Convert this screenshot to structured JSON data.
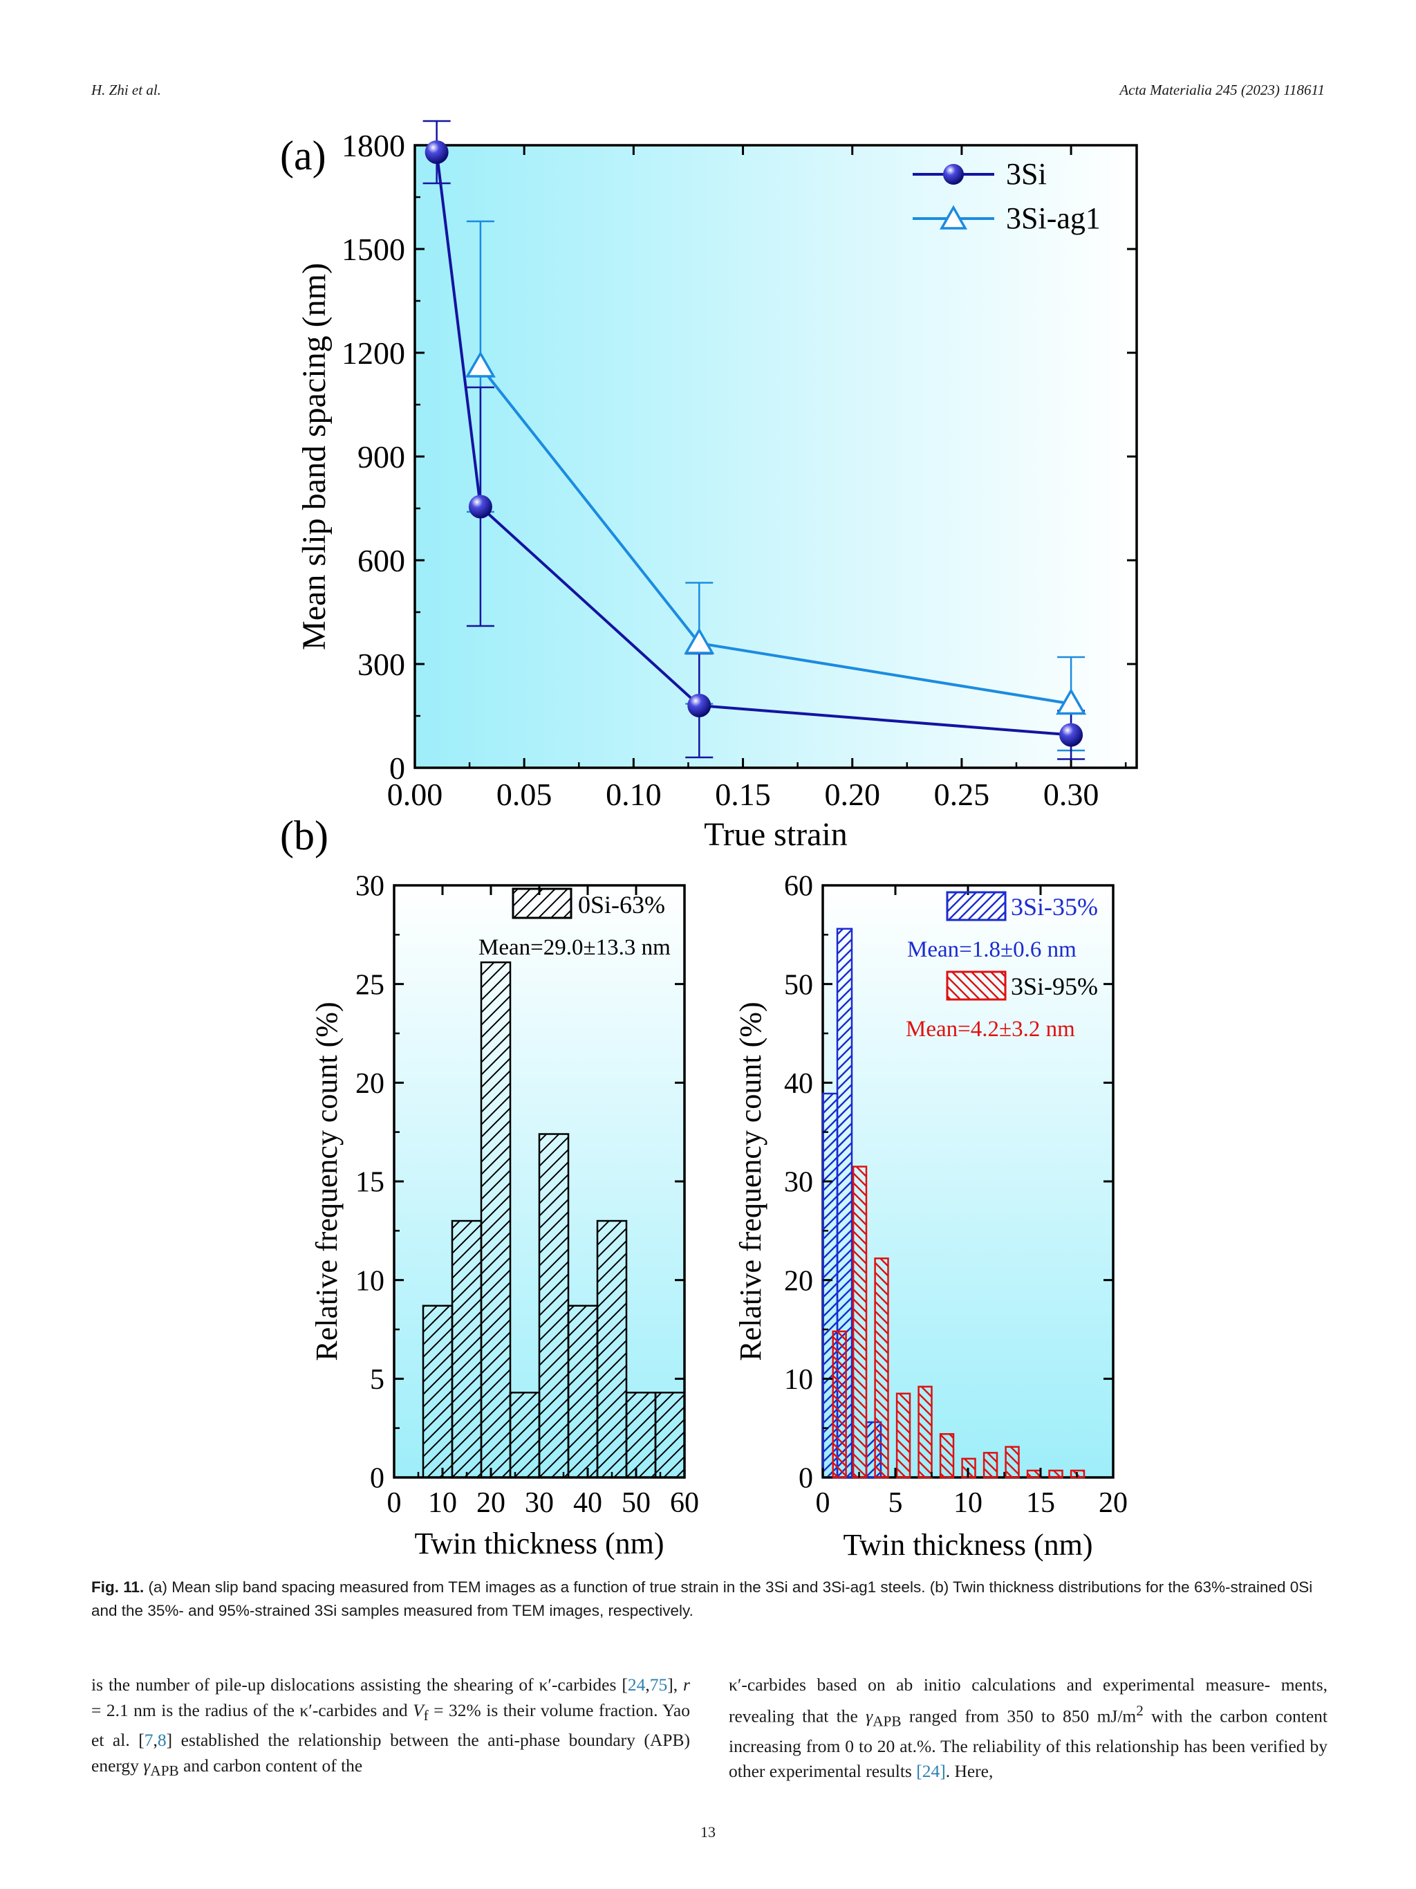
{
  "header": {
    "left": "H. Zhi et al.",
    "right": "Acta Materialia 245 (2023) 118611"
  },
  "figure": {
    "panel_a_label": "(a)",
    "panel_b_label": "(b)",
    "colors": {
      "dark_blue": "#1414a0",
      "light_blue": "#1c8be0",
      "black": "#000000",
      "red": "#e01010",
      "blue": "#1a2bd0",
      "bg_light": "#ffffff",
      "bg_cyan": "#9eeefa"
    }
  },
  "chart_data": [
    {
      "type": "line",
      "xlabel": "True strain",
      "ylabel": "Mean slip band spacing (nm)",
      "xlim": [
        0,
        0.33
      ],
      "ylim": [
        0,
        1800
      ],
      "xticks": [
        "0.00",
        "0.05",
        "0.10",
        "0.15",
        "0.20",
        "0.25",
        "0.30"
      ],
      "yticks": [
        "0",
        "300",
        "600",
        "900",
        "1200",
        "1500",
        "1800"
      ],
      "legend_position": "top-right",
      "series": [
        {
          "name": "3Si",
          "marker": "sphere",
          "x": [
            0.01,
            0.03,
            0.13,
            0.3
          ],
          "y": [
            1780,
            755,
            180,
            95
          ],
          "err": [
            90,
            345,
            150,
            70
          ]
        },
        {
          "name": "3Si-ag1",
          "marker": "triangle",
          "x": [
            0.03,
            0.13,
            0.3
          ],
          "y": [
            1160,
            360,
            185
          ],
          "err": [
            420,
            175,
            135
          ]
        }
      ]
    },
    {
      "type": "bar",
      "xlabel": "Twin thickness (nm)",
      "ylabel": "Relative frequency count (%)",
      "xlim": [
        0,
        60
      ],
      "ylim": [
        0,
        30
      ],
      "xticks": [
        "0",
        "10",
        "20",
        "30",
        "40",
        "50",
        "60"
      ],
      "yticks": [
        "0",
        "5",
        "10",
        "15",
        "20",
        "25",
        "30"
      ],
      "bin_width": 6,
      "legend_position": "top-right",
      "series": [
        {
          "name": "0Si-63%",
          "annotation": "Mean=29.0±13.3 nm",
          "bin_start": [
            6,
            12,
            18,
            24,
            30,
            36,
            42,
            48,
            54
          ],
          "values": [
            8.7,
            13.0,
            26.1,
            4.3,
            17.4,
            8.7,
            13.0,
            4.3,
            4.3
          ]
        }
      ]
    },
    {
      "type": "bar",
      "xlabel": "Twin thickness (nm)",
      "ylabel": "Relative frequency count (%)",
      "xlim": [
        0,
        20
      ],
      "ylim": [
        0,
        60
      ],
      "xticks": [
        "0",
        "5",
        "10",
        "15",
        "20"
      ],
      "yticks": [
        "0",
        "10",
        "20",
        "30",
        "40",
        "50",
        "60"
      ],
      "legend_position": "top-right",
      "series": [
        {
          "name": "3Si-35%",
          "annotation": "Mean=1.8±0.6 nm",
          "bin_width": 1,
          "bin_start": [
            0,
            1,
            2,
            3
          ],
          "values": [
            38.9,
            55.6,
            0,
            5.6
          ]
        },
        {
          "name": "3Si-95%",
          "annotation": "Mean=4.2±3.2 nm",
          "bin_width": 0.9,
          "bin_start": [
            0.7,
            2.1,
            3.6,
            5.1,
            6.6,
            8.1,
            9.6,
            11.1,
            12.6,
            14.1,
            15.6,
            17.1
          ],
          "values": [
            14.8,
            31.5,
            22.2,
            8.5,
            9.2,
            4.4,
            1.9,
            2.5,
            3.1,
            0.7,
            0.7,
            0.7
          ]
        }
      ]
    }
  ],
  "caption": {
    "label": "Fig. 11.",
    "text": " (a) Mean slip band spacing measured from TEM images as a function of true strain in the 3Si and 3Si-ag1 steels. (b) Twin thickness distributions for the 63%-strained 0Si and the 35%- and 95%-strained 3Si samples measured from TEM images, respectively."
  },
  "body": {
    "left": {
      "l1": "is the number of pile-up dislocations assisting the shearing of κ′-carbides",
      "l2_ref1": "24",
      "l2_sep": ",",
      "l2_ref2": "75",
      "l2_a": "], ",
      "l2_r": "r",
      "l2_b": " = 2.1 nm is the radius of the κ′-carbides and ",
      "l2_V": "V",
      "l2_sub": "f",
      "l2_c": " = 32% is their",
      "l3_a": "volume fraction. Yao et al. [",
      "l3_ref1": "7",
      "l3_sep": ",",
      "l3_ref2": "8",
      "l3_b": "] established the relationship between",
      "l4_a": "the anti-phase boundary (APB) energy ",
      "l4_gamma": "γ",
      "l4_sub": "APB",
      "l4_b": " and carbon content of the"
    },
    "right": {
      "l1": "κ′-carbides based on ab initio calculations and experimental measure-",
      "l2_a": "ments, revealing that the ",
      "l2_gamma": "γ",
      "l2_sub": "APB",
      "l2_b": " ranged from 350 to 850 mJ/m",
      "l2_sup": "2",
      "l2_c": " with the",
      "l3": "carbon content increasing from 0 to 20 at.%. The reliability of this",
      "l4_a": "relationship has been verified by other experimental results ",
      "l4_ref": "[24]",
      "l4_b": ". Here,"
    }
  },
  "page_number": "13"
}
